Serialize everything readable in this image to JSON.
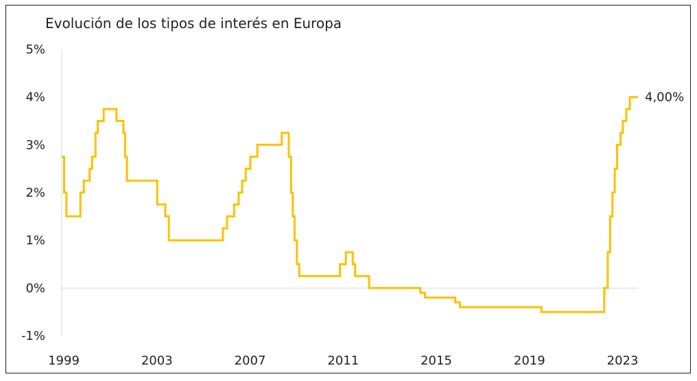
{
  "chart_data": {
    "type": "line",
    "title": "Evolución de los tipos de interés en Europa",
    "xlabel": "",
    "ylabel": "",
    "xlim": [
      1999,
      2023.75
    ],
    "ylim": [
      -1,
      5
    ],
    "y_ticks": [
      {
        "value": 5,
        "label": "5%"
      },
      {
        "value": 4,
        "label": "4%"
      },
      {
        "value": 3,
        "label": "3%"
      },
      {
        "value": 2,
        "label": "2%"
      },
      {
        "value": 1,
        "label": "1%"
      },
      {
        "value": 0,
        "label": "0%"
      },
      {
        "value": -1,
        "label": "-1%"
      }
    ],
    "x_ticks": [
      {
        "value": 1999,
        "label": "1999"
      },
      {
        "value": 2003,
        "label": "2003"
      },
      {
        "value": 2007,
        "label": "2007"
      },
      {
        "value": 2011,
        "label": "2011"
      },
      {
        "value": 2015,
        "label": "2015"
      },
      {
        "value": 2019,
        "label": "2019"
      },
      {
        "value": 2023,
        "label": "2023"
      }
    ],
    "grid": "zero-line only",
    "legend": "none",
    "series": [
      {
        "color": "#FFC000",
        "step": true,
        "x": [
          1999.0,
          1999.1,
          1999.2,
          1999.8,
          1999.95,
          2000.2,
          2000.3,
          2000.45,
          2000.55,
          2000.8,
          2000.95,
          2001.35,
          2001.65,
          2001.72,
          2001.8,
          2001.95,
          2003.1,
          2003.45,
          2003.6,
          2005.92,
          2006.1,
          2006.4,
          2006.6,
          2006.75,
          2006.9,
          2007.1,
          2007.4,
          2008.45,
          2008.75,
          2008.85,
          2008.92,
          2009.0,
          2009.1,
          2009.2,
          2010.95,
          2011.2,
          2011.5,
          2011.6,
          2011.7,
          2012.2,
          2014.4,
          2014.6,
          2015.9,
          2016.1,
          2019.6,
          2022.3,
          2022.45,
          2022.55,
          2022.65,
          2022.75,
          2022.85,
          2023.0,
          2023.1,
          2023.25,
          2023.4,
          2023.5,
          2023.75
        ],
        "y": [
          2.75,
          2.0,
          1.5,
          2.0,
          2.25,
          2.5,
          2.75,
          3.25,
          3.5,
          3.75,
          3.75,
          3.5,
          3.25,
          2.75,
          2.25,
          2.25,
          1.75,
          1.5,
          1.0,
          1.25,
          1.5,
          1.75,
          2.0,
          2.25,
          2.5,
          2.75,
          3.0,
          3.25,
          2.75,
          2.0,
          1.5,
          1.0,
          0.5,
          0.25,
          0.5,
          0.75,
          0.5,
          0.25,
          0.25,
          0.0,
          -0.1,
          -0.2,
          -0.3,
          -0.4,
          -0.5,
          0.0,
          0.75,
          1.5,
          2.0,
          2.5,
          3.0,
          3.25,
          3.5,
          3.75,
          4.0,
          4.0,
          4.0
        ],
        "end_label": "4,00%"
      }
    ]
  }
}
